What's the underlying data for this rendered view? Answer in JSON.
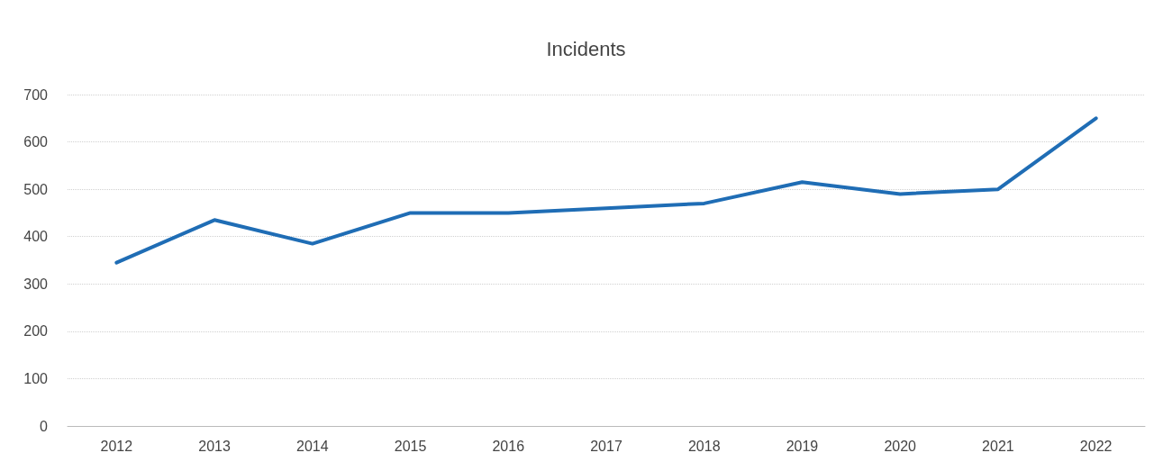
{
  "chart_data": {
    "type": "line",
    "title": "Incidents",
    "categories": [
      "2012",
      "2013",
      "2014",
      "2015",
      "2016",
      "2017",
      "2018",
      "2019",
      "2020",
      "2021",
      "2022"
    ],
    "series": [
      {
        "color": "#1f6db5",
        "values": [
          345,
          435,
          385,
          450,
          450,
          460,
          470,
          515,
          490,
          500,
          650
        ]
      }
    ],
    "ylim": [
      0,
      700
    ],
    "yticks": [
      0,
      100,
      200,
      300,
      400,
      500,
      600,
      700
    ],
    "grid": "y",
    "marker": "none",
    "line_style": "solid"
  }
}
